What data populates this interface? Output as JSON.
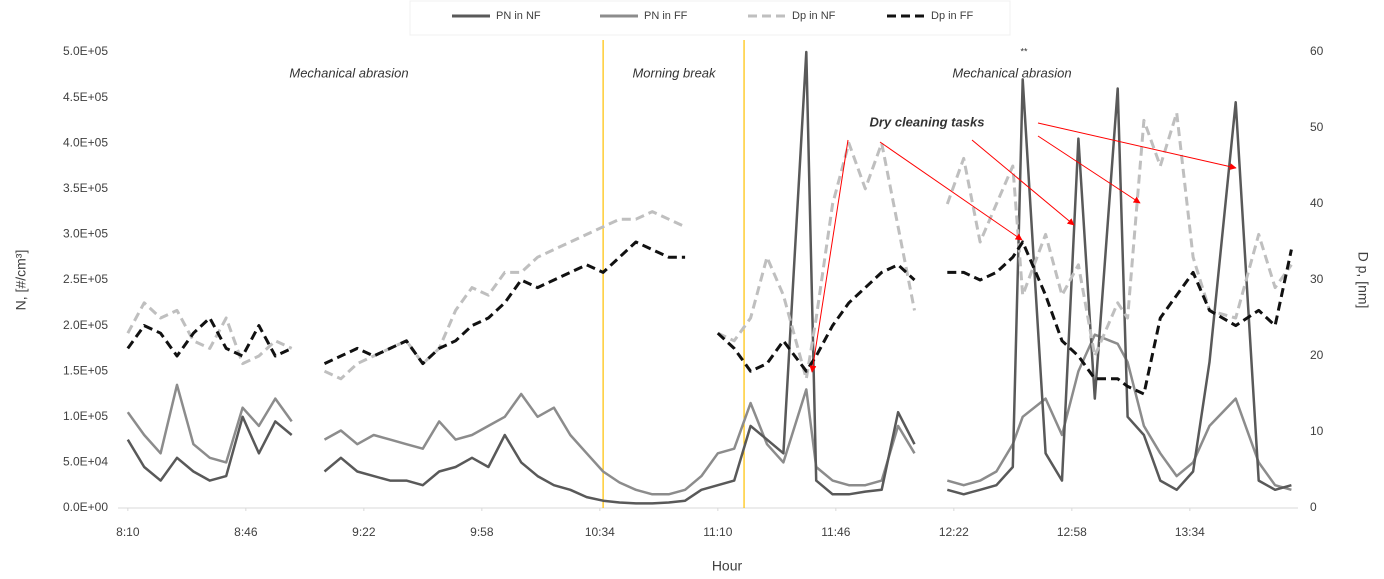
{
  "chart_data": {
    "type": "line",
    "x_label": "Hour",
    "y_label": "N, [#/cm³]",
    "y2_label": "D p, [nm]",
    "x": [
      "8:10",
      "8:15",
      "8:20",
      "8:25",
      "8:30",
      "8:35",
      "8:40",
      "8:45",
      "8:50",
      "8:55",
      "9:00",
      "9:05",
      "9:10",
      "9:15",
      "9:20",
      "9:25",
      "9:30",
      "9:35",
      "9:40",
      "9:45",
      "9:50",
      "9:55",
      "10:00",
      "10:05",
      "10:10",
      "10:15",
      "10:20",
      "10:25",
      "10:30",
      "10:35",
      "10:40",
      "10:45",
      "10:50",
      "10:55",
      "11:00",
      "11:05",
      "11:10",
      "11:15",
      "11:20",
      "11:25",
      "11:30",
      "11:37",
      "11:40",
      "11:45",
      "11:50",
      "11:55",
      "12:00",
      "12:05",
      "12:10",
      "12:15",
      "12:20",
      "12:25",
      "12:30",
      "12:35",
      "12:40",
      "12:43",
      "12:50",
      "12:55",
      "13:00",
      "13:05",
      "13:12",
      "13:15",
      "13:20",
      "13:25",
      "13:30",
      "13:35",
      "13:40",
      "13:48",
      "13:55",
      "14:00",
      "14:05"
    ],
    "series": [
      {
        "name": "PN in NF",
        "color": "#595959",
        "dash": false,
        "axis": "y",
        "values": [
          75000,
          45000,
          30000,
          55000,
          40000,
          30000,
          35000,
          100000,
          60000,
          95000,
          80000,
          null,
          40000,
          55000,
          40000,
          35000,
          30000,
          30000,
          25000,
          40000,
          45000,
          55000,
          45000,
          80000,
          50000,
          35000,
          25000,
          20000,
          12000,
          8000,
          6000,
          5000,
          5000,
          6000,
          8000,
          20000,
          25000,
          30000,
          90000,
          75000,
          60000,
          500000,
          30000,
          15000,
          15000,
          18000,
          20000,
          105000,
          70000,
          null,
          20000,
          15000,
          20000,
          25000,
          45000,
          470000,
          60000,
          30000,
          405000,
          120000,
          460000,
          100000,
          80000,
          30000,
          20000,
          40000,
          160000,
          445000,
          30000,
          20000,
          25000
        ]
      },
      {
        "name": "PN in FF",
        "color": "#8c8c8c",
        "dash": false,
        "axis": "y",
        "values": [
          105000,
          80000,
          60000,
          135000,
          70000,
          55000,
          50000,
          110000,
          90000,
          120000,
          95000,
          null,
          75000,
          85000,
          70000,
          80000,
          75000,
          70000,
          65000,
          95000,
          75000,
          80000,
          90000,
          100000,
          125000,
          100000,
          110000,
          80000,
          60000,
          40000,
          28000,
          20000,
          15000,
          15000,
          20000,
          35000,
          60000,
          65000,
          115000,
          70000,
          50000,
          130000,
          45000,
          30000,
          25000,
          25000,
          30000,
          90000,
          60000,
          null,
          30000,
          25000,
          30000,
          40000,
          70000,
          100000,
          120000,
          80000,
          150000,
          190000,
          180000,
          160000,
          90000,
          60000,
          35000,
          50000,
          90000,
          120000,
          50000,
          25000,
          20000
        ]
      },
      {
        "name": "Dp in NF",
        "color": "#bfbfbf",
        "dash": true,
        "axis": "y2",
        "values": [
          23,
          27,
          25,
          26,
          22,
          21,
          25,
          19,
          20,
          22,
          21,
          null,
          18,
          17,
          19,
          20,
          21,
          22,
          19,
          21,
          26,
          29,
          28,
          31,
          31,
          33,
          34,
          35,
          36,
          37,
          38,
          38,
          39,
          38,
          37,
          null,
          23,
          22,
          25,
          33,
          28,
          17,
          25,
          40,
          48,
          42,
          48,
          37,
          26,
          null,
          40,
          46,
          35,
          40,
          45,
          28,
          36,
          28,
          32,
          20,
          27,
          25,
          51,
          45,
          52,
          33,
          26,
          25,
          36,
          29,
          32
        ]
      },
      {
        "name": "Dp in FF",
        "color": "#111111",
        "dash": true,
        "axis": "y2",
        "values": [
          21,
          24,
          23,
          20,
          23,
          25,
          21,
          20,
          24,
          20,
          21,
          null,
          19,
          20,
          21,
          20,
          21,
          22,
          19,
          21,
          22,
          24,
          25,
          27,
          30,
          29,
          30,
          31,
          32,
          31,
          33,
          35,
          34,
          33,
          33,
          null,
          23,
          21,
          18,
          19,
          22,
          18,
          20,
          24,
          27,
          29,
          31,
          32,
          30,
          null,
          31,
          31,
          30,
          31,
          33,
          35,
          28,
          22,
          20,
          17,
          17,
          16,
          15,
          25,
          28,
          31,
          26,
          24,
          26,
          24,
          34
        ]
      }
    ],
    "xlim": [
      "8:07",
      "14:07"
    ],
    "xticks": [
      "8:10",
      "8:46",
      "9:22",
      "9:58",
      "10:34",
      "11:10",
      "11:46",
      "12:22",
      "12:58",
      "13:34"
    ],
    "ylim": [
      0,
      500000
    ],
    "yticks": [
      {
        "value": 0,
        "label": "0.0E+00"
      },
      {
        "value": 50000,
        "label": "5.0E+04"
      },
      {
        "value": 100000,
        "label": "1.0E+05"
      },
      {
        "value": 150000,
        "label": "1.5E+05"
      },
      {
        "value": 200000,
        "label": "2.0E+05"
      },
      {
        "value": 250000,
        "label": "2.5E+05"
      },
      {
        "value": 300000,
        "label": "3.0E+05"
      },
      {
        "value": 350000,
        "label": "3.5E+05"
      },
      {
        "value": 400000,
        "label": "4.0E+05"
      },
      {
        "value": 450000,
        "label": "4.5E+05"
      },
      {
        "value": 500000,
        "label": "5.0E+05"
      }
    ],
    "y2lim": [
      0,
      60
    ],
    "y2ticks": [
      0,
      10,
      20,
      30,
      40,
      50,
      60
    ],
    "vlines": {
      "color": "#ffc000",
      "x": [
        "10:35",
        "11:18"
      ]
    },
    "annotations": [
      "Mechanical abrasion",
      "Morning break",
      "Mechanical abrasion",
      "Dry cleaning tasks",
      "**"
    ],
    "arrow_color": "#ff0000",
    "legend": "top"
  }
}
